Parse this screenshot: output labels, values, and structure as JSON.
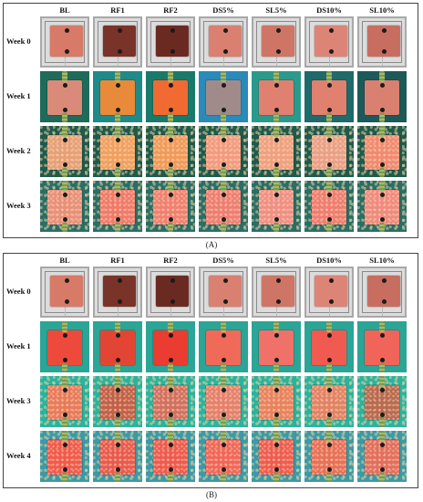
{
  "columns": [
    "BL",
    "RF1",
    "RF2",
    "DS5%",
    "SL5%",
    "DS10%",
    "SL10%"
  ],
  "panel_a": {
    "label": "(A)",
    "rows": [
      "Week 0",
      "Week 1",
      "Week 2",
      "Week 3"
    ]
  },
  "panel_b": {
    "label": "(B)",
    "rows": [
      "Week 0",
      "Week 1",
      "Week 3",
      "Week 4"
    ]
  },
  "colors": {
    "BL": "#d77a68",
    "RF1": "#7a3328",
    "RF2": "#6a2a22",
    "DS5": "#d98070",
    "SL5": "#cf7565",
    "DS10": "#dc8577",
    "SL10": "#c86e60",
    "tank_teal": "#1f6a5c",
    "tank_teal_b": "#2fb3a0",
    "tank_blue": "#2a86b8",
    "wet_orange": "#f0703a",
    "wet_red": "#ee4a3c"
  }
}
